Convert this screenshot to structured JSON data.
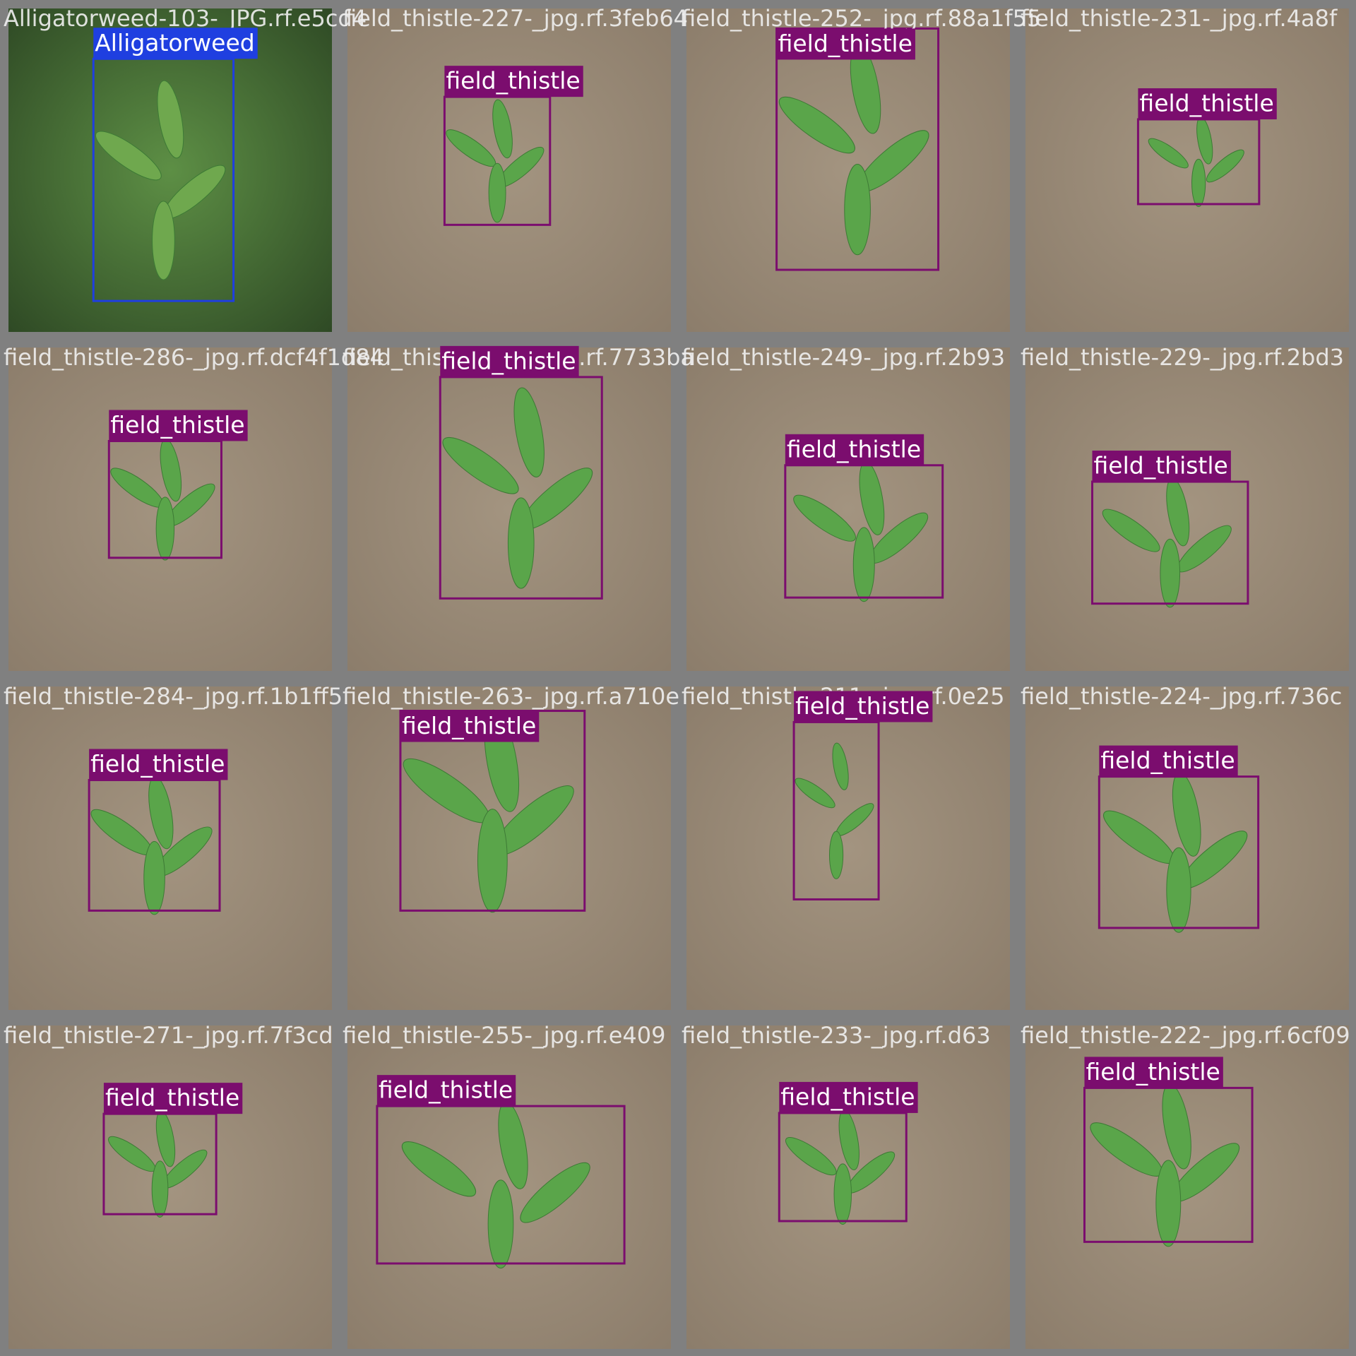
{
  "tiles": [
    {
      "filename": "Alligatorweed-103-_JPG.rf.e5cd4",
      "detections": [
        "Alligatorweed"
      ]
    },
    {
      "filename": "field_thistle-227-_jpg.rf.3feb64",
      "detections": [
        "field_thistle"
      ]
    },
    {
      "filename": "field_thistle-252-_jpg.rf.88a1f55",
      "detections": [
        "field_thistle"
      ]
    },
    {
      "filename": "field_thistle-231-_jpg.rf.4a8f",
      "detections": [
        "field_thistle"
      ]
    },
    {
      "filename": "field_thistle-286-_jpg.rf.dcf4f1d84",
      "detections": [
        "field_thistle"
      ]
    },
    {
      "filename": "field_thistle-238-_jpg.rf.7733ba",
      "detections": [
        "field_thistle"
      ]
    },
    {
      "filename": "field_thistle-249-_jpg.rf.2b93",
      "detections": [
        "field_thistle"
      ]
    },
    {
      "filename": "field_thistle-229-_jpg.rf.2bd3",
      "detections": [
        "field_thistle"
      ]
    },
    {
      "filename": "field_thistle-284-_jpg.rf.1b1ff5",
      "detections": [
        "field_thistle"
      ]
    },
    {
      "filename": "field_thistle-263-_jpg.rf.a710e",
      "detections": [
        "field_thistle"
      ]
    },
    {
      "filename": "field_thistle-211-_jpg.rf.0e25",
      "detections": [
        "field_thistle"
      ]
    },
    {
      "filename": "field_thistle-224-_jpg.rf.736c",
      "detections": [
        "field_thistle"
      ]
    },
    {
      "filename": "field_thistle-271-_jpg.rf.7f3cd",
      "detections": [
        "field_thistle"
      ]
    },
    {
      "filename": "field_thistle-255-_jpg.rf.e409",
      "detections": [
        "field_thistle"
      ]
    },
    {
      "filename": "field_thistle-233-_jpg.rf.d63",
      "detections": [
        "field_thistle"
      ]
    },
    {
      "filename": "field_thistle-222-_jpg.rf.6cf09",
      "detections": [
        "field_thistle"
      ]
    }
  ]
}
